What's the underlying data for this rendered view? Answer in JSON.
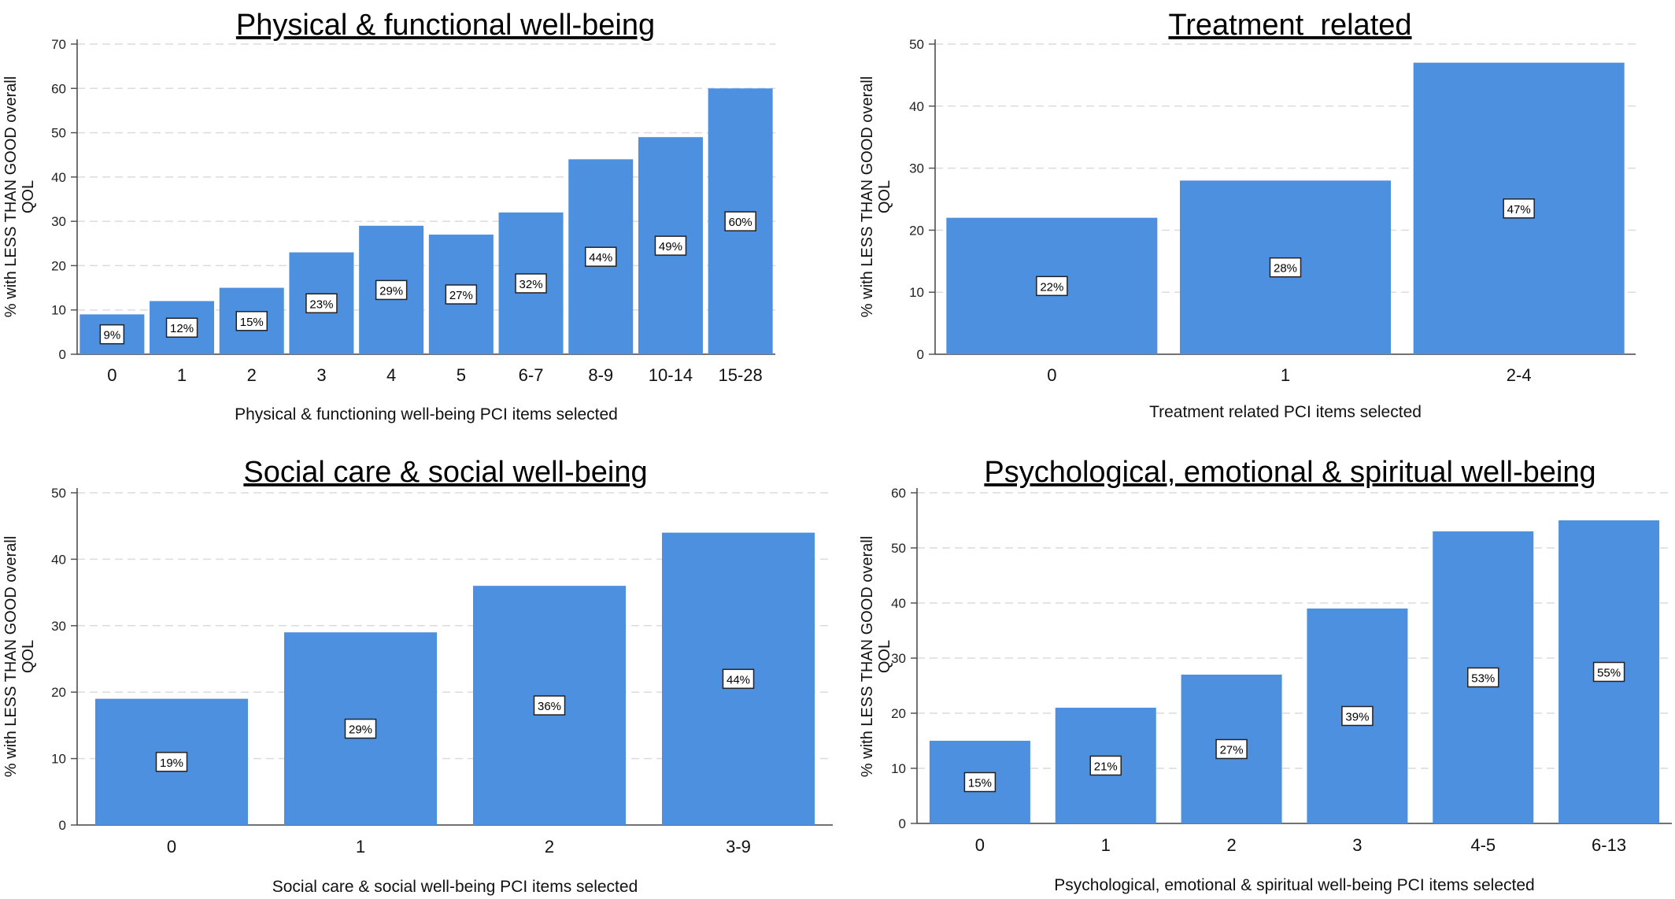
{
  "chart_data": [
    {
      "type": "bar",
      "title": "Physical & functional well-being",
      "xlabel": "Physical & functioning well-being PCI items selected",
      "ylabel": "% with LESS THAN GOOD overall QOL",
      "categories": [
        "0",
        "1",
        "2",
        "3",
        "4",
        "5",
        "6-7",
        "8-9",
        "10-14",
        "15-28"
      ],
      "values": [
        9,
        12,
        15,
        23,
        29,
        27,
        32,
        44,
        49,
        60
      ],
      "data_labels": [
        "9%",
        "12%",
        "15%",
        "23%",
        "29%",
        "27%",
        "32%",
        "44%",
        "49%",
        "60%"
      ],
      "yticks": [
        0,
        10,
        20,
        30,
        40,
        50,
        60,
        70
      ],
      "ylim": [
        0,
        70
      ],
      "grid": true,
      "bar_color": "#4d90e0"
    },
    {
      "type": "bar",
      "title": "Treatment  related",
      "xlabel": "Treatment related PCI items selected",
      "ylabel": "% with LESS THAN GOOD overall QOL",
      "categories": [
        "0",
        "1",
        "2-4"
      ],
      "values": [
        22,
        28,
        47
      ],
      "data_labels": [
        "22%",
        "28%",
        "47%"
      ],
      "yticks": [
        0,
        10,
        20,
        30,
        40,
        50
      ],
      "ylim": [
        0,
        50
      ],
      "grid": true,
      "bar_color": "#4d90e0"
    },
    {
      "type": "bar",
      "title": "Social care & social well-being",
      "xlabel": "Social care & social well-being PCI items selected",
      "ylabel": "% with LESS THAN GOOD overall QOL",
      "categories": [
        "0",
        "1",
        "2",
        "3-9"
      ],
      "values": [
        19,
        29,
        36,
        44
      ],
      "data_labels": [
        "19%",
        "29%",
        "36%",
        "44%"
      ],
      "yticks": [
        0,
        10,
        20,
        30,
        40,
        50
      ],
      "ylim": [
        0,
        50
      ],
      "grid": true,
      "bar_color": "#4d90e0"
    },
    {
      "type": "bar",
      "title": "Psychological, emotional & spiritual well-being",
      "xlabel": "Psychological, emotional & spiritual well-being PCI items selected",
      "ylabel": "% with LESS THAN GOOD overall QOL",
      "categories": [
        "0",
        "1",
        "2",
        "3",
        "4-5",
        "6-13"
      ],
      "values": [
        15,
        21,
        27,
        39,
        53,
        55
      ],
      "data_labels": [
        "15%",
        "21%",
        "27%",
        "39%",
        "53%",
        "55%"
      ],
      "yticks": [
        0,
        10,
        20,
        30,
        40,
        50,
        60
      ],
      "ylim": [
        0,
        60
      ],
      "grid": true,
      "bar_color": "#4d90e0"
    }
  ]
}
